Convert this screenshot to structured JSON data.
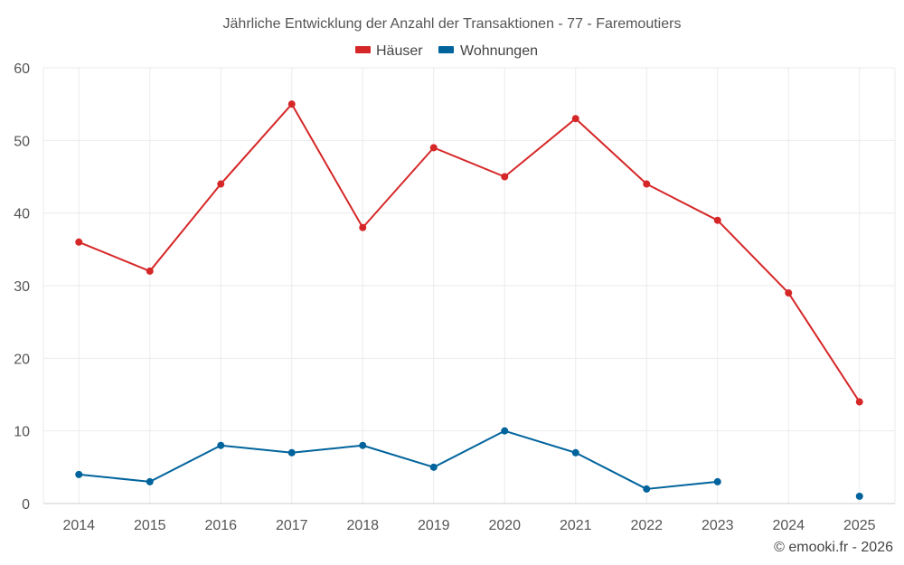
{
  "chart_data": {
    "type": "line",
    "title": "Jährliche Entwicklung der Anzahl der Transaktionen - 77 - Faremoutiers",
    "categories": [
      "2014",
      "2015",
      "2016",
      "2017",
      "2018",
      "2019",
      "2020",
      "2021",
      "2022",
      "2023",
      "2024",
      "2025"
    ],
    "series": [
      {
        "name": "Häuser",
        "color": "#d62728",
        "values": [
          36,
          32,
          44,
          55,
          38,
          49,
          45,
          53,
          44,
          39,
          29,
          14
        ]
      },
      {
        "name": "Wohnungen",
        "color": "#00639c",
        "values": [
          4,
          3,
          8,
          7,
          8,
          5,
          10,
          7,
          2,
          3,
          null,
          1
        ]
      }
    ],
    "ylim": [
      0,
      60
    ],
    "yticks": [
      0,
      10,
      20,
      30,
      40,
      50,
      60
    ],
    "xlabel": "",
    "ylabel": "",
    "grid": true,
    "legend_position": "top-center"
  },
  "credit": "© emooki.fr - 2026"
}
